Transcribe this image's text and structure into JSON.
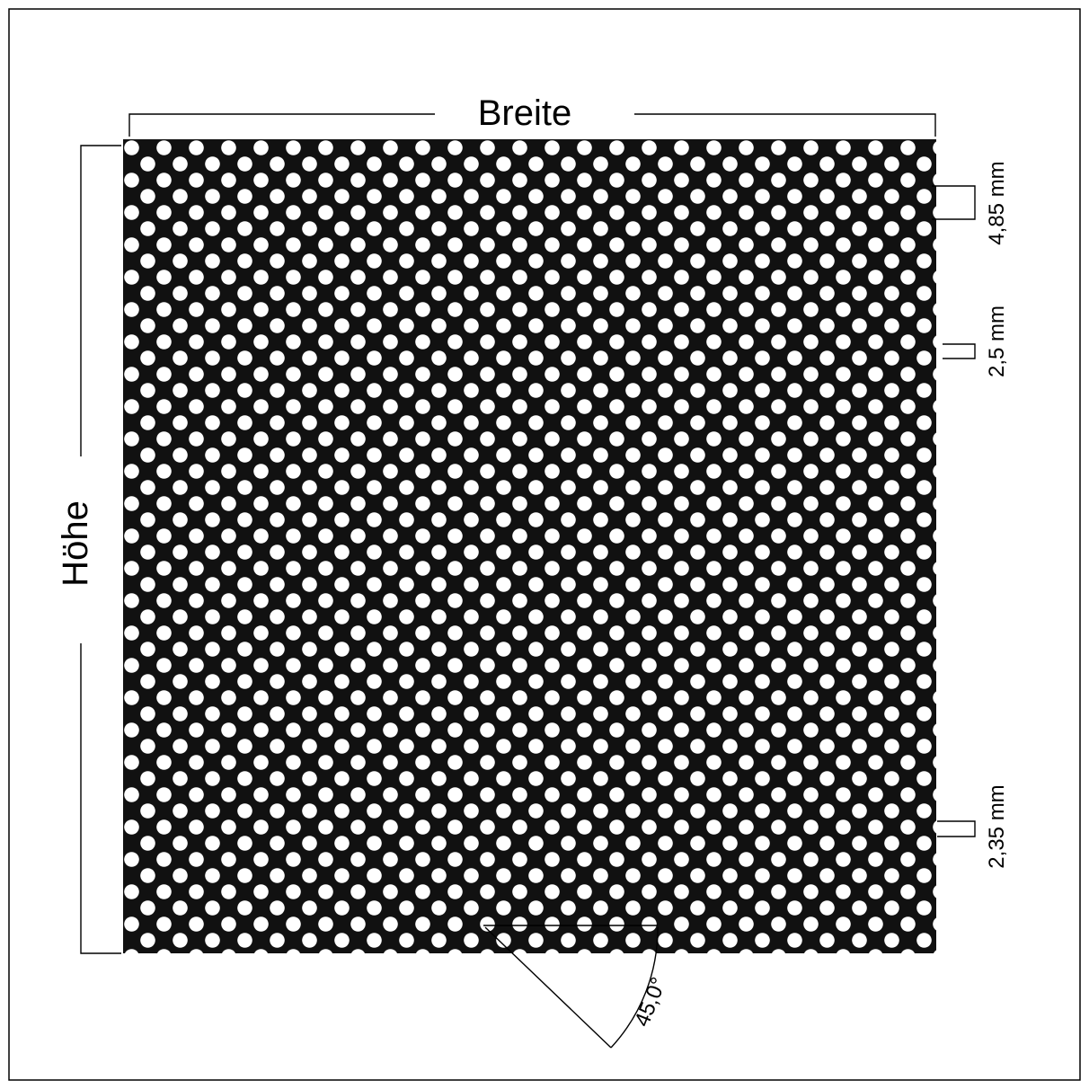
{
  "labels": {
    "width": "Breite",
    "height": "Höhe",
    "pitch": "4,85 mm",
    "hole_diameter": "2,5 mm",
    "bar_width": "2,35 mm",
    "angle": "45,0°"
  },
  "colors": {
    "sheet": "#111111",
    "holes": "#ffffff",
    "lines": "#000000",
    "background": "#ffffff"
  },
  "pattern": {
    "arrangement": "staggered round holes, 45° offset"
  }
}
